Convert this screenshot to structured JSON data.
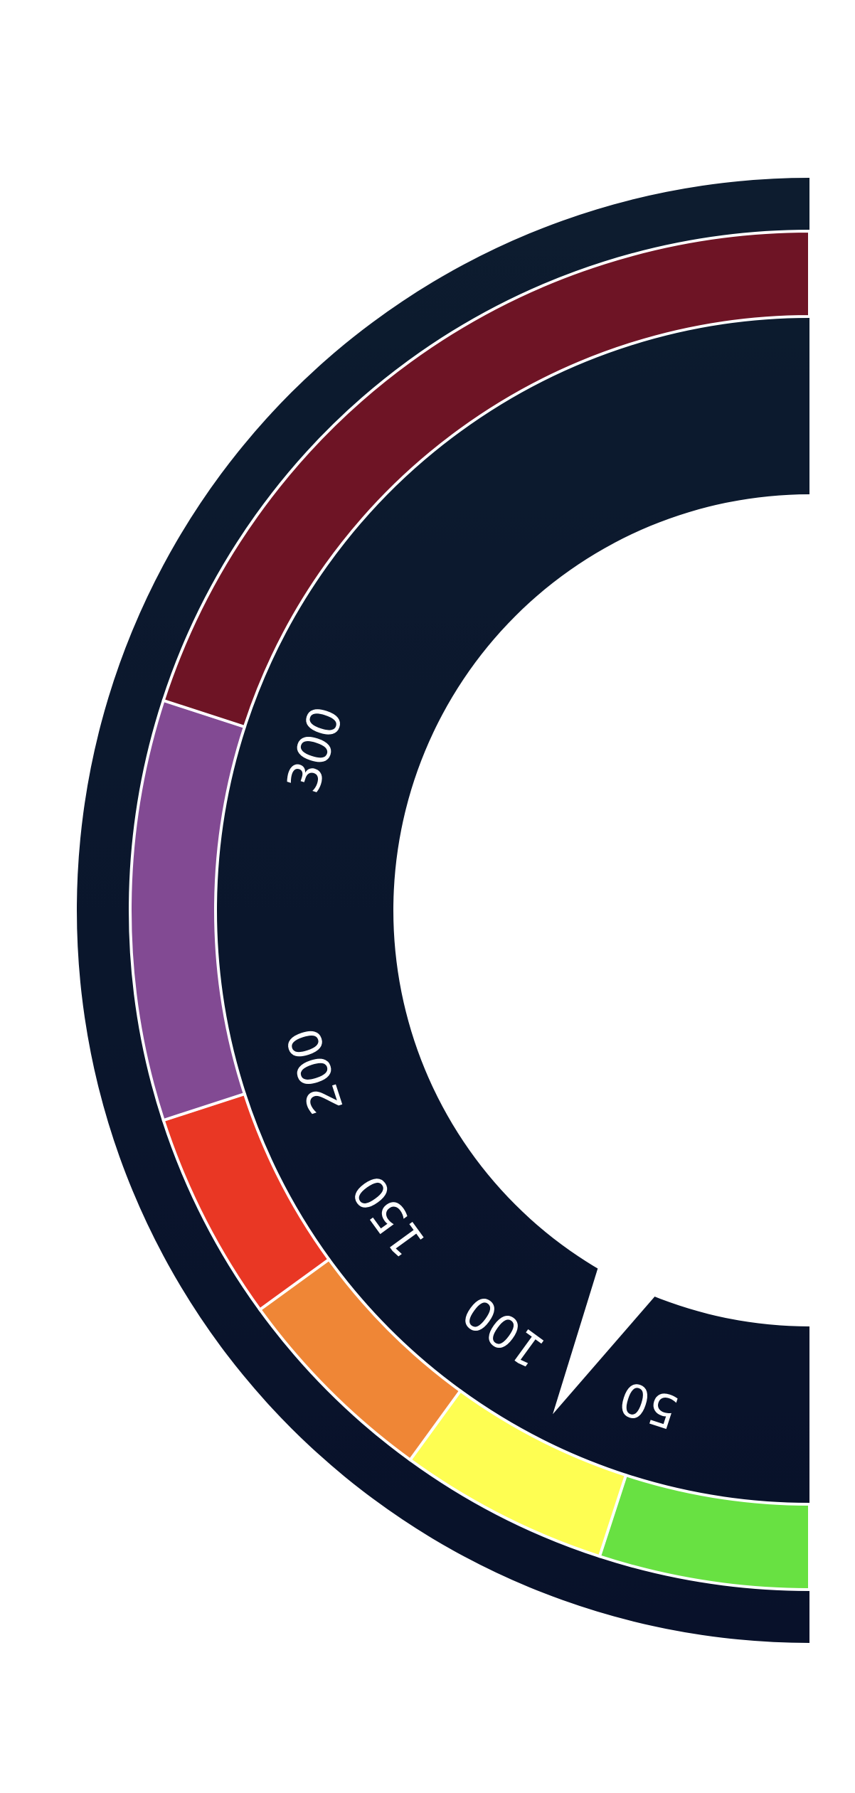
{
  "chart_data": {
    "type": "gauge",
    "scale": [
      0,
      500
    ],
    "bands": [
      {
        "from": 0,
        "to": 50,
        "color": "#68e142"
      },
      {
        "from": 50,
        "to": 100,
        "color": "#fefe52"
      },
      {
        "from": 100,
        "to": 150,
        "color": "#ef8636"
      },
      {
        "from": 150,
        "to": 200,
        "color": "#e93724"
      },
      {
        "from": 200,
        "to": 300,
        "color": "#824a93"
      },
      {
        "from": 300,
        "to": 500,
        "color": "#6e1425"
      }
    ],
    "ticks": [
      {
        "value": 50,
        "label": "50"
      },
      {
        "value": 100,
        "label": "100"
      },
      {
        "value": 150,
        "label": "150"
      },
      {
        "value": 200,
        "label": "200"
      },
      {
        "value": 300,
        "label": "300"
      }
    ],
    "pointer_value": 75,
    "colors": {
      "dial": "#0b1629",
      "band_outline": "#ffffff",
      "background": "#ffffff"
    }
  }
}
